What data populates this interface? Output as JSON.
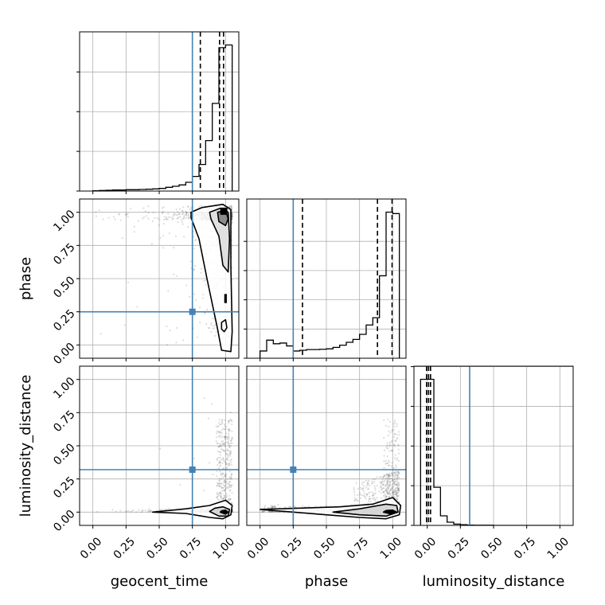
{
  "chart_data": {
    "type": "corner",
    "parameters": [
      "geocent_time",
      "phase",
      "luminosity_distance"
    ],
    "axis_labels": {
      "geocent_time": "geocent_time",
      "phase": "phase",
      "luminosity_distance": "luminosity_distance"
    },
    "range": [
      -0.1,
      1.1
    ],
    "ticks": [
      0.0,
      0.25,
      0.5,
      0.75,
      1.0
    ],
    "tick_labels": [
      "0.00",
      "0.25",
      "0.50",
      "0.75",
      "1.00"
    ],
    "grid": true,
    "truths": {
      "geocent_time": 0.75,
      "phase": 0.25,
      "luminosity_distance": 0.32
    },
    "truth_color": "#4682b4",
    "quantile_lines": {
      "geocent_time": [
        0.81,
        0.955,
        0.985
      ],
      "phase": [
        0.32,
        0.885,
        0.995
      ],
      "luminosity_distance": [
        -0.005,
        0.01,
        0.025
      ]
    },
    "histograms": {
      "geocent_time": {
        "bin_edges": [
          0.0,
          0.05,
          0.1,
          0.15,
          0.2,
          0.25,
          0.3,
          0.35,
          0.4,
          0.45,
          0.5,
          0.55,
          0.6,
          0.65,
          0.7,
          0.75,
          0.8,
          0.85,
          0.9,
          0.95,
          1.0,
          1.05
        ],
        "counts": [
          1,
          2,
          3,
          4,
          4,
          5,
          5,
          6,
          7,
          8,
          10,
          14,
          18,
          23,
          33,
          55,
          100,
          190,
          330,
          540,
          550
        ]
      },
      "phase": {
        "bin_edges": [
          0.0,
          0.05,
          0.1,
          0.15,
          0.2,
          0.25,
          0.3,
          0.35,
          0.4,
          0.45,
          0.5,
          0.55,
          0.6,
          0.65,
          0.7,
          0.75,
          0.8,
          0.85,
          0.9,
          0.95,
          1.0,
          1.05
        ],
        "counts": [
          50,
          125,
          100,
          105,
          85,
          50,
          55,
          60,
          60,
          62,
          65,
          75,
          90,
          110,
          130,
          165,
          230,
          280,
          570,
          1010,
          1000
        ]
      },
      "luminosity_distance": {
        "bin_edges": [
          -0.05,
          0.0,
          0.05,
          0.1,
          0.15,
          0.2,
          0.25,
          0.3,
          0.35,
          0.4,
          0.45,
          0.5,
          0.55,
          0.6,
          0.65,
          0.7,
          0.75,
          0.8,
          0.85,
          0.9,
          0.95,
          1.0
        ],
        "counts": [
          920,
          920,
          240,
          60,
          20,
          8,
          4,
          2,
          1,
          1,
          1,
          0,
          0,
          0,
          0,
          0,
          0,
          0,
          0,
          0,
          0
        ]
      }
    },
    "colors": {
      "histogram": "#000000",
      "grid": "#b0b0b0",
      "scatter": "#7f7f7f"
    }
  }
}
